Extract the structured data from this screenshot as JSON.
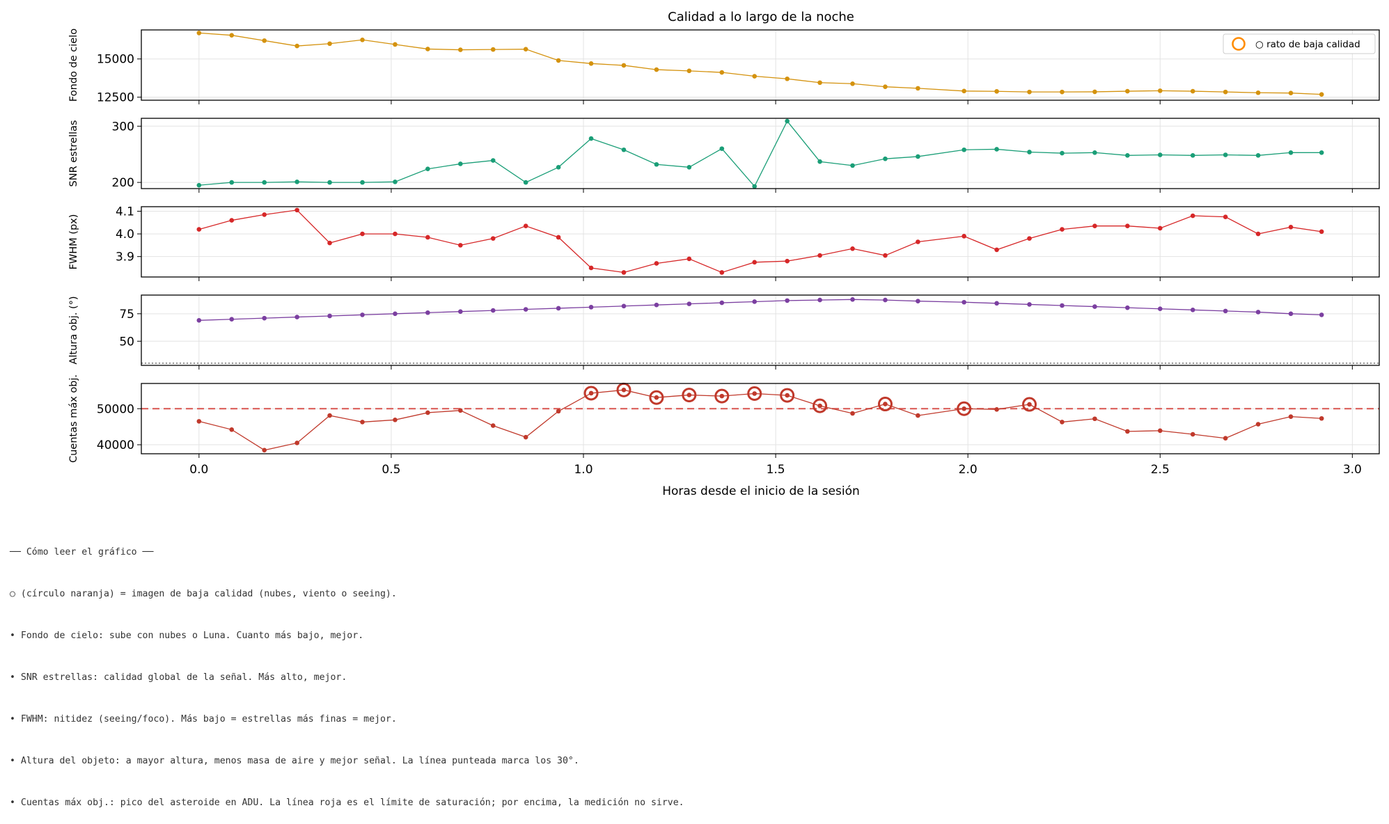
{
  "chart_data": {
    "type": "line",
    "title": "Calidad a lo largo de la noche",
    "xlabel": "Horas desde el inicio de la sesión",
    "xlim": [
      -0.15,
      3.07
    ],
    "x_ticks": [
      0.0,
      0.5,
      1.0,
      1.5,
      2.0,
      2.5,
      3.0
    ],
    "x_tick_labels": [
      "0.0",
      "0.5",
      "1.0",
      "1.5",
      "2.0",
      "2.5",
      "3.0"
    ],
    "x": [
      0.0,
      0.085,
      0.17,
      0.255,
      0.34,
      0.425,
      0.51,
      0.595,
      0.68,
      0.765,
      0.85,
      0.935,
      1.02,
      1.105,
      1.19,
      1.275,
      1.36,
      1.445,
      1.53,
      1.615,
      1.7,
      1.785,
      1.87,
      1.99,
      2.075,
      2.16,
      2.245,
      2.33,
      2.415,
      2.5,
      2.585,
      2.67,
      2.755,
      2.84,
      2.92
    ],
    "legend": {
      "label": "○ rato de baja calidad",
      "placement": "upper right",
      "marker_color": "#ff8c00"
    },
    "grid": true,
    "panels": [
      {
        "ylabel": "Fondo de cielo",
        "color": "#d4920e",
        "ylim": [
          12300,
          16900
        ],
        "y_ticks": [
          12500,
          15000
        ],
        "y_tick_labels": [
          "12500",
          "15000"
        ],
        "values": [
          16700,
          16550,
          16200,
          15850,
          16000,
          16250,
          15950,
          15650,
          15600,
          15620,
          15640,
          14900,
          14700,
          14580,
          14300,
          14220,
          14120,
          13870,
          13700,
          13450,
          13380,
          13180,
          13080,
          12900,
          12880,
          12840,
          12840,
          12850,
          12890,
          12920,
          12890,
          12840,
          12790,
          12770,
          12680
        ]
      },
      {
        "ylabel": "SNR estrellas",
        "color": "#1a9e77",
        "ylim": [
          189,
          314
        ],
        "y_ticks": [
          200,
          300
        ],
        "y_tick_labels": [
          "200",
          "300"
        ],
        "values": [
          195,
          200,
          200,
          201,
          200,
          200,
          201,
          224,
          233,
          239,
          200,
          227,
          278,
          258,
          232,
          227,
          260,
          193,
          309,
          237,
          230,
          242,
          246,
          258,
          259,
          254,
          252,
          253,
          248,
          249,
          248,
          249,
          248,
          253,
          253
        ]
      },
      {
        "ylabel": "FWHM (px)",
        "color": "#d62728",
        "ylim": [
          3.81,
          4.12
        ],
        "y_ticks": [
          3.9,
          4.0,
          4.1
        ],
        "y_tick_labels": [
          "3.9",
          "4.0",
          "4.1"
        ],
        "values": [
          4.02,
          4.06,
          4.085,
          4.105,
          3.96,
          4.0,
          4.0,
          3.985,
          3.95,
          3.98,
          4.035,
          3.985,
          3.85,
          3.83,
          3.87,
          3.89,
          3.83,
          3.875,
          3.88,
          3.905,
          3.935,
          3.905,
          3.965,
          3.99,
          3.93,
          3.98,
          4.02,
          4.035,
          4.035,
          4.025,
          4.08,
          4.075,
          4.0,
          4.03,
          4.01
        ]
      },
      {
        "ylabel": "Altura obj. (°)",
        "color": "#7b3fa0",
        "ylim": [
          28,
          92
        ],
        "y_ticks": [
          50,
          75
        ],
        "y_tick_labels": [
          "50",
          "75"
        ],
        "reference_line": {
          "value": 30,
          "style": "dotted",
          "color": "#555555"
        },
        "values": [
          69,
          70,
          71,
          72,
          73,
          74,
          75,
          76,
          77,
          78,
          79,
          80,
          81,
          82,
          83,
          84,
          85,
          86,
          87,
          87.5,
          88,
          87.5,
          86.5,
          85.5,
          84.5,
          83.5,
          82.5,
          81.5,
          80.5,
          79.5,
          78.5,
          77.5,
          76.5,
          75,
          74
        ]
      },
      {
        "ylabel": "Cuentas máx obj.",
        "color": "#c0392b",
        "ylim": [
          37500,
          57000
        ],
        "y_ticks": [
          40000,
          50000
        ],
        "y_tick_labels": [
          "40000",
          "50000"
        ],
        "reference_line": {
          "value": 50000,
          "style": "dashed",
          "color": "#d9534f"
        },
        "values": [
          46500,
          44200,
          38500,
          40500,
          48100,
          46300,
          46900,
          48900,
          49500,
          45300,
          42100,
          49300,
          54300,
          55200,
          53100,
          53800,
          53500,
          54200,
          53700,
          50800,
          48700,
          51300,
          48100,
          50000,
          49800,
          51200,
          46300,
          47200,
          43700,
          43900,
          42900,
          41800,
          45700,
          47800,
          47300
        ],
        "low_quality": [
          false,
          false,
          false,
          false,
          false,
          false,
          false,
          false,
          false,
          false,
          false,
          false,
          true,
          true,
          true,
          true,
          true,
          true,
          true,
          true,
          false,
          true,
          false,
          true,
          false,
          true,
          false,
          false,
          false,
          false,
          false,
          false,
          false,
          false,
          false
        ]
      }
    ]
  },
  "notes": {
    "heading": "── Cómo leer el gráfico ──",
    "lines": [
      "○ (círculo naranja) = imagen de baja calidad (nubes, viento o seeing).",
      "• Fondo de cielo: sube con nubes o Luna. Cuanto más bajo, mejor.",
      "• SNR estrellas: calidad global de la señal. Más alto, mejor.",
      "• FWHM: nitidez (seeing/foco). Más bajo = estrellas más finas = mejor.",
      "• Altura del objeto: a mayor altura, menos masa de aire y mejor señal. La línea punteada marca los 30°.",
      "• Cuentas máx obj.: pico del asteroide en ADU. La línea roja es el límite de saturación; por encima, la medición no sirve."
    ]
  }
}
